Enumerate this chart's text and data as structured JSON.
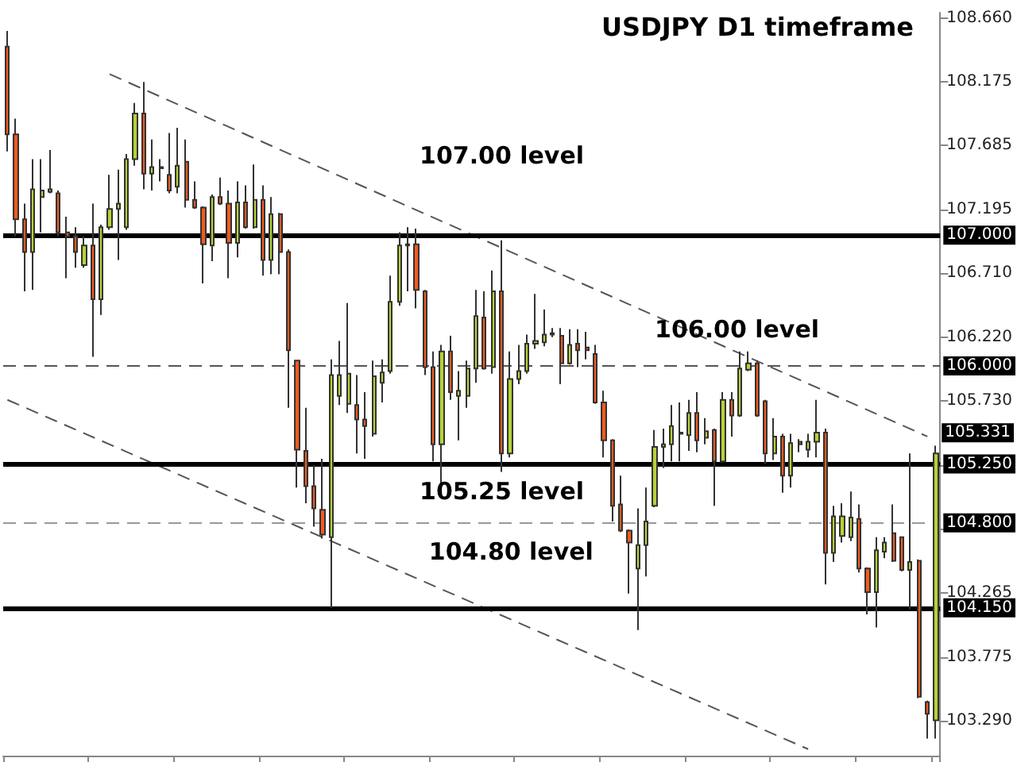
{
  "chart_data": {
    "type": "candlestick",
    "title": "USDJPY D1 timeframe",
    "categories": [
      null,
      null,
      null,
      null,
      null,
      null,
      null,
      null,
      null,
      null,
      null,
      null,
      null,
      null,
      null,
      null,
      null,
      null,
      null,
      null,
      null,
      null,
      null,
      null,
      null,
      null,
      null,
      null,
      null,
      null,
      null,
      null,
      null,
      null,
      null,
      null,
      null,
      null,
      null,
      null,
      null,
      null,
      null,
      null,
      null,
      null,
      null,
      null,
      null,
      null,
      null,
      null,
      null,
      null,
      null,
      null,
      null,
      null,
      null,
      null,
      null,
      null,
      null,
      null,
      null,
      null,
      null,
      null,
      null,
      null,
      null,
      null,
      null,
      null,
      null,
      null,
      null,
      null,
      null,
      null,
      null,
      null,
      null,
      null,
      null,
      null,
      null,
      null,
      null,
      null,
      null,
      null,
      null,
      null,
      null,
      null,
      null,
      null,
      null,
      null,
      null,
      null,
      null,
      null,
      null,
      null,
      null,
      null,
      null,
      null
    ],
    "ohlc": [
      [
        108.44,
        108.56,
        107.64,
        107.77
      ],
      [
        107.77,
        107.89,
        106.99,
        107.12
      ],
      [
        107.12,
        107.24,
        106.57,
        106.87
      ],
      [
        106.87,
        107.58,
        106.58,
        107.35
      ],
      [
        107.29,
        107.58,
        107.02,
        107.34
      ],
      [
        107.33,
        107.65,
        107.32,
        107.35
      ],
      [
        107.32,
        107.34,
        106.99,
        107.02
      ],
      [
        107.02,
        107.14,
        106.67,
        106.99
      ],
      [
        106.99,
        107.06,
        106.75,
        106.87
      ],
      [
        106.77,
        106.99,
        106.75,
        106.92
      ],
      [
        106.92,
        107.24,
        106.07,
        106.51
      ],
      [
        106.51,
        107.08,
        106.39,
        107.06
      ],
      [
        107.06,
        107.46,
        107.04,
        107.2
      ],
      [
        107.2,
        107.5,
        106.81,
        107.24
      ],
      [
        107.06,
        107.62,
        107.04,
        107.58
      ],
      [
        107.58,
        108.01,
        107.53,
        107.93
      ],
      [
        107.93,
        108.17,
        107.35,
        107.47
      ],
      [
        107.47,
        107.73,
        107.34,
        107.52
      ],
      [
        107.51,
        107.58,
        107.41,
        107.52
      ],
      [
        107.46,
        107.78,
        107.32,
        107.34
      ],
      [
        107.37,
        107.82,
        107.32,
        107.53
      ],
      [
        107.56,
        107.73,
        107.21,
        107.27
      ],
      [
        107.27,
        107.41,
        107.2,
        107.21
      ],
      [
        107.21,
        107.22,
        106.63,
        106.93
      ],
      [
        106.92,
        107.31,
        106.8,
        107.29
      ],
      [
        107.29,
        107.44,
        107.23,
        107.24
      ],
      [
        107.24,
        107.34,
        106.67,
        106.94
      ],
      [
        106.94,
        107.41,
        106.83,
        107.25
      ],
      [
        107.25,
        107.38,
        107.05,
        107.06
      ],
      [
        107.06,
        107.54,
        107.05,
        107.27
      ],
      [
        107.27,
        107.38,
        106.69,
        106.81
      ],
      [
        106.81,
        107.29,
        106.7,
        107.16
      ],
      [
        107.16,
        107.17,
        106.7,
        106.87
      ],
      [
        106.87,
        106.89,
        105.68,
        106.12
      ],
      [
        106.04,
        106.04,
        105.07,
        105.36
      ],
      [
        105.35,
        105.68,
        104.95,
        105.08
      ],
      [
        105.08,
        105.24,
        104.77,
        104.91
      ],
      [
        104.9,
        105.29,
        104.68,
        104.71
      ],
      [
        104.69,
        106.05,
        104.15,
        105.93
      ],
      [
        105.77,
        106.19,
        105.7,
        105.93
      ],
      [
        105.71,
        106.48,
        105.64,
        105.94
      ],
      [
        105.7,
        105.93,
        105.33,
        105.59
      ],
      [
        105.59,
        105.8,
        105.29,
        105.54
      ],
      [
        105.48,
        106.04,
        105.46,
        105.92
      ],
      [
        105.87,
        106.05,
        105.72,
        105.95
      ],
      [
        105.96,
        106.69,
        105.94,
        106.49
      ],
      [
        106.49,
        107.02,
        106.46,
        106.92
      ],
      [
        106.92,
        107.06,
        106.57,
        106.93
      ],
      [
        106.93,
        107.05,
        106.44,
        106.58
      ],
      [
        106.57,
        106.58,
        105.93,
        105.99
      ],
      [
        105.99,
        106.11,
        105.27,
        105.4
      ],
      [
        105.4,
        106.16,
        105.08,
        106.11
      ],
      [
        106.11,
        106.23,
        105.74,
        105.8
      ],
      [
        105.77,
        105.96,
        105.43,
        105.81
      ],
      [
        105.77,
        106.04,
        105.68,
        105.98
      ],
      [
        105.98,
        106.58,
        105.87,
        106.38
      ],
      [
        106.37,
        106.57,
        105.97,
        105.98
      ],
      [
        105.99,
        106.73,
        105.94,
        106.57
      ],
      [
        106.57,
        106.96,
        105.19,
        105.33
      ],
      [
        105.33,
        106.11,
        105.3,
        105.9
      ],
      [
        105.9,
        106.16,
        105.86,
        105.96
      ],
      [
        105.96,
        106.24,
        105.94,
        106.17
      ],
      [
        106.17,
        106.55,
        106.13,
        106.19
      ],
      [
        106.18,
        106.43,
        106.15,
        106.24
      ],
      [
        106.24,
        106.29,
        106.22,
        106.25
      ],
      [
        106.23,
        106.29,
        105.86,
        106.02
      ],
      [
        106.02,
        106.28,
        106.01,
        106.16
      ],
      [
        106.17,
        106.28,
        105.99,
        106.12
      ],
      [
        106.14,
        106.26,
        106.05,
        106.12
      ],
      [
        106.09,
        106.16,
        105.71,
        105.72
      ],
      [
        105.72,
        105.81,
        105.3,
        105.43
      ],
      [
        105.43,
        105.44,
        104.81,
        104.93
      ],
      [
        104.94,
        105.16,
        104.73,
        104.74
      ],
      [
        104.74,
        104.75,
        104.26,
        104.65
      ],
      [
        104.45,
        104.91,
        103.98,
        104.63
      ],
      [
        104.63,
        105.07,
        104.39,
        104.81
      ],
      [
        104.93,
        105.51,
        104.92,
        105.38
      ],
      [
        105.38,
        105.52,
        105.22,
        105.4
      ],
      [
        105.4,
        105.7,
        105.27,
        105.54
      ],
      [
        105.48,
        105.72,
        105.27,
        105.49
      ],
      [
        105.47,
        105.74,
        105.35,
        105.64
      ],
      [
        105.64,
        105.8,
        105.34,
        105.43
      ],
      [
        105.45,
        105.6,
        105.4,
        105.5
      ],
      [
        105.51,
        105.52,
        104.93,
        105.27
      ],
      [
        105.27,
        105.8,
        105.26,
        105.74
      ],
      [
        105.74,
        105.8,
        105.46,
        105.62
      ],
      [
        105.62,
        106.11,
        105.61,
        105.98
      ],
      [
        105.97,
        106.11,
        105.96,
        106.02
      ],
      [
        106.02,
        106.04,
        105.61,
        105.62
      ],
      [
        105.73,
        105.74,
        105.25,
        105.33
      ],
      [
        105.33,
        105.6,
        105.28,
        105.46
      ],
      [
        105.46,
        105.48,
        105.03,
        105.16
      ],
      [
        105.16,
        105.48,
        105.07,
        105.41
      ],
      [
        105.42,
        105.44,
        105.34,
        105.4
      ],
      [
        105.36,
        105.48,
        105.3,
        105.42
      ],
      [
        105.42,
        105.74,
        105.3,
        105.49
      ],
      [
        105.49,
        105.52,
        104.33,
        104.57
      ],
      [
        104.57,
        104.93,
        104.5,
        104.85
      ],
      [
        104.7,
        104.95,
        104.65,
        104.85
      ],
      [
        104.69,
        105.04,
        104.66,
        104.84
      ],
      [
        104.83,
        104.94,
        104.42,
        104.45
      ],
      [
        104.45,
        104.46,
        104.1,
        104.27
      ],
      [
        104.27,
        104.69,
        104.0,
        104.59
      ],
      [
        104.58,
        104.69,
        104.53,
        104.65
      ],
      [
        104.72,
        104.94,
        104.5,
        104.51
      ],
      [
        104.69,
        104.69,
        104.43,
        104.44
      ],
      [
        104.44,
        105.33,
        104.14,
        104.5
      ],
      [
        104.51,
        104.52,
        103.46,
        103.47
      ],
      [
        103.43,
        103.44,
        103.15,
        103.34
      ],
      [
        103.29,
        105.39,
        103.15,
        105.33
      ]
    ],
    "colors": [
      "#f25a1d",
      "#f25a1d",
      "#f25a1d",
      "#b5d334",
      "#b5d334",
      "#b5d334",
      "#f25a1d",
      "#f25a1d",
      "#f25a1d",
      "#b5d334",
      "#f25a1d",
      "#b5d334",
      "#b5d334",
      "#b5d334",
      "#b5d334",
      "#b5d334",
      "#f25a1d",
      "#b5d334",
      "#b5d334",
      "#f25a1d",
      "#b5d334",
      "#f25a1d",
      "#f25a1d",
      "#f25a1d",
      "#b5d334",
      "#f25a1d",
      "#f25a1d",
      "#b5d334",
      "#f25a1d",
      "#b5d334",
      "#f25a1d",
      "#b5d334",
      "#f25a1d",
      "#f25a1d",
      "#f25a1d",
      "#f25a1d",
      "#f25a1d",
      "#f25a1d",
      "#b5d334",
      "#b5d334",
      "#b5d334",
      "#f25a1d",
      "#f25a1d",
      "#b5d334",
      "#b5d334",
      "#b5d334",
      "#b5d334",
      "#b5d334",
      "#f25a1d",
      "#f25a1d",
      "#f25a1d",
      "#b5d334",
      "#f25a1d",
      "#b5d334",
      "#b5d334",
      "#b5d334",
      "#f25a1d",
      "#b5d334",
      "#f25a1d",
      "#b5d334",
      "#b5d334",
      "#b5d334",
      "#b5d334",
      "#b5d334",
      "#b5d334",
      "#f25a1d",
      "#b5d334",
      "#f25a1d",
      "#f25a1d",
      "#f25a1d",
      "#f25a1d",
      "#f25a1d",
      "#f25a1d",
      "#f25a1d",
      "#b5d334",
      "#b5d334",
      "#b5d334",
      "#b5d334",
      "#b5d334",
      "#b5d334",
      "#b5d334",
      "#f25a1d",
      "#b5d334",
      "#f25a1d",
      "#b5d334",
      "#f25a1d",
      "#b5d334",
      "#b5d334",
      "#f25a1d",
      "#f25a1d",
      "#b5d334",
      "#f25a1d",
      "#b5d334",
      "#f25a1d",
      "#b5d334",
      "#b5d334",
      "#f25a1d",
      "#b5d334",
      "#b5d334",
      "#b5d334",
      "#f25a1d",
      "#f25a1d",
      "#b5d334",
      "#b5d334",
      "#f25a1d",
      "#f25a1d",
      "#b5d334",
      "#f25a1d",
      "#f25a1d",
      "#b5d334"
    ],
    "series": [
      {
        "type": "line",
        "color": "#555555",
        "line_style": "dashed",
        "values": [
          null,
          null,
          null,
          null,
          null,
          null,
          null,
          null,
          null,
          null,
          null,
          null,
          108.23,
          null,
          null,
          null,
          null,
          null,
          null,
          null,
          null,
          null,
          null,
          null,
          null,
          null,
          null,
          null,
          null,
          null,
          null,
          null,
          null,
          null,
          null,
          null,
          null,
          null,
          null,
          null,
          null,
          null,
          null,
          null,
          null,
          null,
          null,
          null,
          null,
          null,
          null,
          null,
          null,
          null,
          null,
          null,
          null,
          null,
          null,
          null,
          null,
          null,
          null,
          null,
          null,
          null,
          null,
          null,
          null,
          null,
          null,
          null,
          null,
          null,
          null,
          null,
          null,
          null,
          null,
          null,
          null,
          null,
          null,
          null,
          null,
          null,
          null,
          null,
          null,
          null,
          null,
          null,
          null,
          null,
          null,
          null,
          null,
          null,
          null,
          null,
          null,
          null,
          null,
          null,
          null,
          null,
          null,
          null,
          105.46,
          null
        ]
      },
      {
        "type": "line",
        "color": "#555555",
        "line_style": "dashed",
        "values": [
          105.74,
          null,
          null,
          null,
          null,
          null,
          null,
          null,
          null,
          null,
          null,
          null,
          null,
          null,
          null,
          null,
          null,
          null,
          null,
          null,
          null,
          null,
          null,
          null,
          null,
          null,
          null,
          null,
          null,
          null,
          null,
          null,
          null,
          null,
          null,
          null,
          null,
          null,
          null,
          null,
          null,
          null,
          null,
          null,
          null,
          null,
          null,
          null,
          null,
          null,
          null,
          null,
          null,
          null,
          null,
          null,
          null,
          null,
          null,
          null,
          null,
          null,
          null,
          null,
          null,
          null,
          null,
          null,
          null,
          null,
          null,
          null,
          null,
          null,
          null,
          null,
          null,
          null,
          null,
          null,
          null,
          null,
          null,
          null,
          null,
          null,
          null,
          null,
          null,
          null,
          null,
          null,
          null,
          null,
          103.07,
          null,
          null,
          null,
          null,
          null,
          null,
          null,
          null,
          null,
          null,
          null,
          null,
          null,
          null,
          null
        ]
      }
    ],
    "ylim": [
      103.02,
      108.7
    ],
    "yticks": [
      {
        "value": 103.29,
        "label": "103.290"
      },
      {
        "value": 103.775,
        "label": "103.775"
      },
      {
        "value": 104.265,
        "label": "104.265"
      },
      {
        "value": 104.75,
        "label": null
      },
      {
        "value": 105.24,
        "label": null
      },
      {
        "value": 105.73,
        "label": "105.730"
      },
      {
        "value": 106.22,
        "label": "106.220"
      },
      {
        "value": 106.71,
        "label": "106.710"
      },
      {
        "value": 107.195,
        "label": "107.195"
      },
      {
        "value": 107.685,
        "label": "107.685"
      },
      {
        "value": 108.175,
        "label": "108.175"
      },
      {
        "value": 108.66,
        "label": "108.660"
      }
    ],
    "ref_lines": [
      {
        "axis": "y",
        "value": 107.0,
        "label": "107.000",
        "color": "#000000",
        "line_style": "solid"
      },
      {
        "axis": "y",
        "value": 106.0,
        "label": "106.000",
        "color": "#555555",
        "line_style": "dashed"
      },
      {
        "axis": "y",
        "value": 105.25,
        "label": "105.250",
        "color": "#000000",
        "line_style": "solid"
      },
      {
        "axis": "y",
        "value": 104.8,
        "label": "104.800",
        "color": "#999999",
        "line_style": "dashed"
      },
      {
        "axis": "y",
        "value": 104.15,
        "label": "104.150",
        "color": "#000000",
        "line_style": "solid"
      }
    ],
    "annotations": [
      {
        "text": "107.00 level",
        "y": 107.0
      },
      {
        "text": "106.00 level",
        "y": 106.0
      },
      {
        "text": "105.25 level",
        "y": 105.25
      },
      {
        "text": "104.80 level",
        "y": 104.8
      },
      "105.331"
    ],
    "grid": false
  }
}
